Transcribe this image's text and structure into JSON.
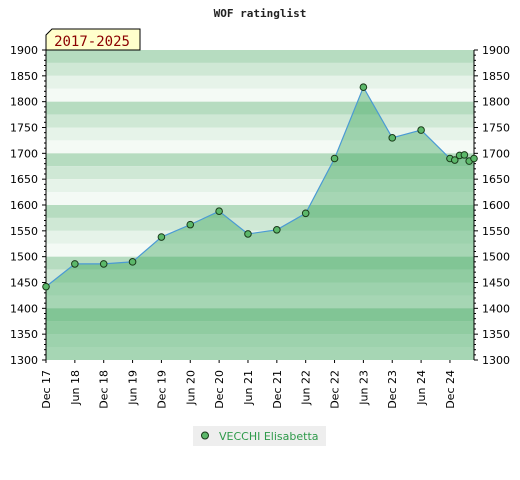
{
  "chart_data": {
    "type": "area",
    "title": "WOF ratinglist",
    "period_label": "2017-2025",
    "xlabel": "",
    "ylabel": "",
    "ylim": [
      1300,
      1900
    ],
    "y_ticks": [
      1300,
      1350,
      1400,
      1450,
      1500,
      1550,
      1600,
      1650,
      1700,
      1750,
      1800,
      1850,
      1900
    ],
    "x_tick_labels": [
      "Dec 17",
      "Jun 18",
      "Dec 18",
      "Jun 19",
      "Dec 19",
      "Jun 20",
      "Dec 20",
      "Jun 21",
      "Dec 21",
      "Jun 22",
      "Dec 22",
      "Jun 23",
      "Dec 23",
      "Jun 24",
      "Dec 24"
    ],
    "x_range_months": [
      0,
      89
    ],
    "grid": true,
    "legend_position": "bottom-center",
    "series": [
      {
        "name": "VECCHI Elisabetta",
        "points": [
          {
            "x": 0,
            "y": 1442
          },
          {
            "x": 6,
            "y": 1486
          },
          {
            "x": 12,
            "y": 1486
          },
          {
            "x": 18,
            "y": 1490
          },
          {
            "x": 24,
            "y": 1538
          },
          {
            "x": 30,
            "y": 1562
          },
          {
            "x": 36,
            "y": 1588
          },
          {
            "x": 42,
            "y": 1544
          },
          {
            "x": 48,
            "y": 1552
          },
          {
            "x": 54,
            "y": 1584
          },
          {
            "x": 60,
            "y": 1690
          },
          {
            "x": 66,
            "y": 1828
          },
          {
            "x": 72,
            "y": 1730
          },
          {
            "x": 78,
            "y": 1745
          },
          {
            "x": 84,
            "y": 1690
          },
          {
            "x": 85,
            "y": 1687
          },
          {
            "x": 86,
            "y": 1696
          },
          {
            "x": 87,
            "y": 1697
          },
          {
            "x": 88,
            "y": 1685
          },
          {
            "x": 89,
            "y": 1690
          }
        ]
      }
    ],
    "colors": {
      "line": "#4a9ad4",
      "area": "#3aa45a",
      "marker_fill": "#5cb86a",
      "marker_stroke": "#1a3a1a",
      "band_dark": "#b6dcc0",
      "band_mid": "#cfe8d5",
      "band_light": "#e6f3e9",
      "band_lightest": "#f4faf5",
      "label_box_fill": "#ffffcc",
      "label_box_text": "#8b0000",
      "legend_text": "#2e9a4a",
      "legend_bg": "#eeeeee"
    }
  }
}
